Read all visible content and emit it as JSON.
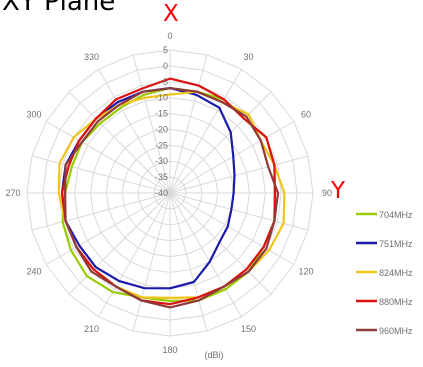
{
  "title": "XY Plane",
  "axis_labels": {
    "top": "X",
    "right": "Y",
    "color": "#ff0000"
  },
  "chart_data": {
    "type": "polar-line",
    "title": "XY Plane",
    "unit_label": "(dBi)",
    "radial_ticks": [
      "5",
      "0",
      "-5",
      "-10",
      "-15",
      "-20",
      "-25",
      "-30",
      "-35",
      "-40"
    ],
    "rmin": -40,
    "rmax": 5,
    "angle_ticks": [
      "0",
      "30",
      "60",
      "90",
      "120",
      "150",
      "180",
      "210",
      "240",
      "270",
      "300",
      "330"
    ],
    "angle_step": 15,
    "grid": true,
    "legend_position": "right",
    "series": [
      {
        "name": "704MHz",
        "color": "#99cc00",
        "angles": [
          0,
          15,
          30,
          45,
          60,
          75,
          90,
          105,
          120,
          135,
          150,
          165,
          180,
          195,
          210,
          225,
          240,
          255,
          270,
          285,
          300,
          315,
          330,
          345
        ],
        "values": [
          -7,
          -7,
          -6,
          -7,
          -5,
          -6,
          -7,
          -6,
          -6,
          -5,
          -5,
          -5,
          -6,
          -6,
          -4,
          -3,
          -4,
          -5,
          -7,
          -8,
          -8,
          -9,
          -9,
          -8
        ]
      },
      {
        "name": "751MHz",
        "color": "#1a1aaa",
        "angles": [
          0,
          15,
          30,
          45,
          60,
          75,
          90,
          105,
          120,
          135,
          150,
          165,
          180,
          195,
          210,
          225,
          240,
          255,
          270,
          285,
          300,
          315,
          330,
          345
        ],
        "values": [
          -7,
          -8,
          -9,
          -13,
          -17,
          -19,
          -20,
          -20,
          -19,
          -18,
          -15,
          -11,
          -10,
          -9,
          -8,
          -7,
          -7,
          -6,
          -6,
          -6,
          -7,
          -7,
          -7,
          -7
        ]
      },
      {
        "name": "824MHz",
        "color": "#f0c419",
        "angles": [
          0,
          15,
          30,
          45,
          60,
          75,
          90,
          105,
          120,
          135,
          150,
          165,
          180,
          195,
          210,
          225,
          240,
          255,
          270,
          285,
          300,
          315,
          330,
          345
        ],
        "values": [
          -9,
          -7,
          -7,
          -5,
          -7,
          -6,
          -4,
          -3,
          -4,
          -5,
          -6,
          -6,
          -7,
          -6,
          -6,
          -6,
          -6,
          -6,
          -5,
          -4,
          -5,
          -7,
          -8,
          -9
        ]
      },
      {
        "name": "880MHz",
        "color": "#dd1111",
        "angles": [
          0,
          15,
          30,
          45,
          60,
          75,
          90,
          105,
          120,
          135,
          150,
          165,
          180,
          195,
          210,
          225,
          240,
          255,
          270,
          285,
          300,
          315,
          330,
          345
        ],
        "values": [
          -4,
          -5,
          -6,
          -7,
          -5,
          -6,
          -7,
          -6,
          -6,
          -6,
          -6,
          -6,
          -5,
          -5,
          -6,
          -6,
          -6,
          -6,
          -6,
          -7,
          -7,
          -7,
          -6,
          -6
        ]
      },
      {
        "name": "960MHz",
        "color": "#8e3a3a",
        "angles": [
          0,
          15,
          30,
          45,
          60,
          75,
          90,
          105,
          120,
          135,
          150,
          165,
          180,
          195,
          210,
          225,
          240,
          255,
          270,
          285,
          300,
          315,
          330,
          345
        ],
        "values": [
          -7,
          -7,
          -7,
          -6,
          -7,
          -8,
          -6,
          -6,
          -5,
          -5,
          -6,
          -5,
          -4,
          -5,
          -6,
          -5,
          -6,
          -6,
          -7,
          -6,
          -8,
          -8,
          -8,
          -7
        ]
      }
    ]
  }
}
